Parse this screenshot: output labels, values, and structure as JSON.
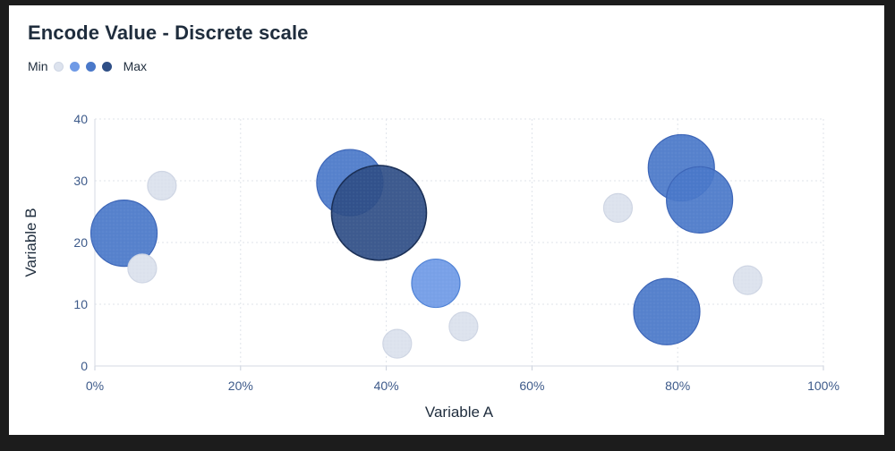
{
  "chart_data": {
    "type": "scatter",
    "title": "Encode Value - Discrete scale",
    "xlabel": "Variable A",
    "ylabel": "Variable B",
    "xlim": [
      0,
      100
    ],
    "ylim": [
      0,
      40
    ],
    "x_ticks": [
      "0%",
      "20%",
      "40%",
      "60%",
      "80%",
      "100%"
    ],
    "y_ticks": [
      "0",
      "10",
      "20",
      "30",
      "40"
    ],
    "grid": true,
    "legend": {
      "placement": "top-left",
      "min_label": "Min",
      "max_label": "Max",
      "levels": [
        "#dde3ee",
        "#6f9ae6",
        "#4a78c9",
        "#2f4f86"
      ]
    },
    "points": [
      {
        "x": 4,
        "y": 21.5,
        "level": 2
      },
      {
        "x": 6.5,
        "y": 15.8,
        "level": 0
      },
      {
        "x": 9.2,
        "y": 29.2,
        "level": 0
      },
      {
        "x": 35,
        "y": 29.7,
        "level": 2
      },
      {
        "x": 39,
        "y": 24.8,
        "level": 3
      },
      {
        "x": 41.5,
        "y": 3.6,
        "level": 0
      },
      {
        "x": 46.8,
        "y": 13.4,
        "level": 1
      },
      {
        "x": 50.6,
        "y": 6.4,
        "level": 0
      },
      {
        "x": 71.8,
        "y": 25.6,
        "level": 0
      },
      {
        "x": 78.5,
        "y": 8.8,
        "level": 2
      },
      {
        "x": 80.5,
        "y": 32.1,
        "level": 2
      },
      {
        "x": 83,
        "y": 26.9,
        "level": 2
      },
      {
        "x": 89.6,
        "y": 13.9,
        "level": 0
      }
    ]
  }
}
